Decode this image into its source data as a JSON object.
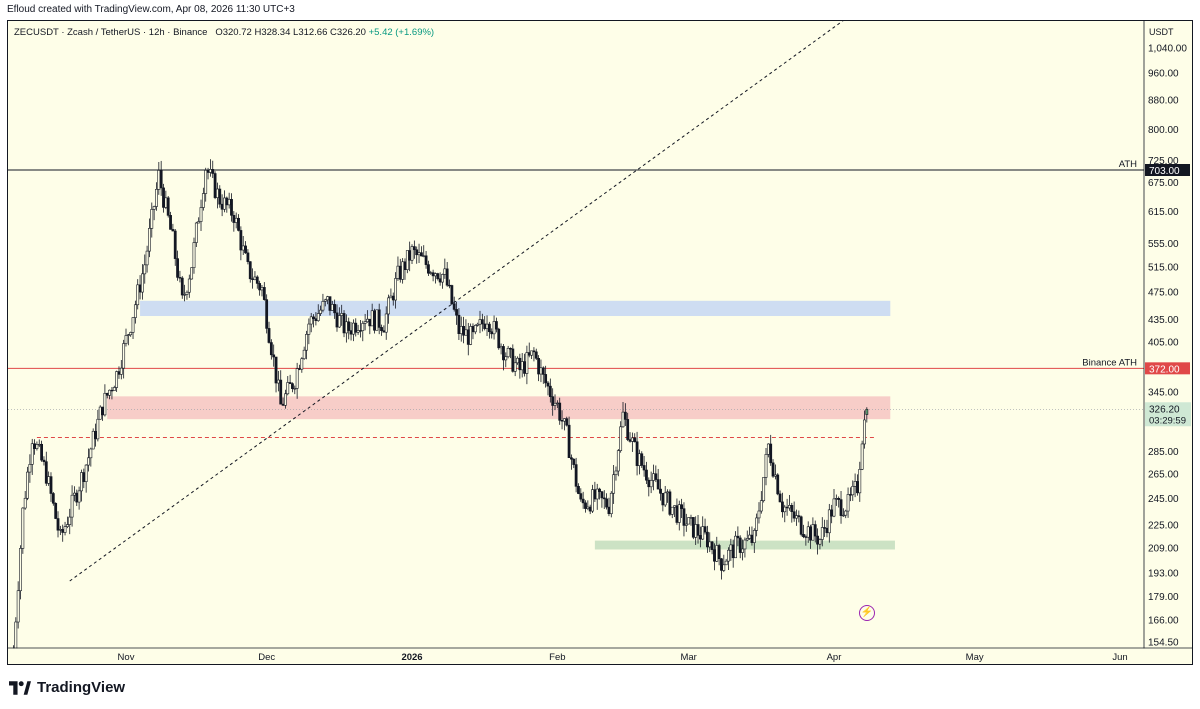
{
  "header": {
    "created_text": "Efloud created with TradingView.com, Apr 08, 2026 11:30 UTC+3"
  },
  "legend": {
    "symbol": "ZECUSDT · Zcash / TetherUS · 12h · Binance",
    "open_label": "O",
    "open": "320.72",
    "high_label": "H",
    "high": "328.34",
    "low_label": "L",
    "low": "312.66",
    "close_label": "C",
    "close": "326.20",
    "change": "+5.42 (+1.69%)"
  },
  "currency": "USDT",
  "brand": {
    "name": "TradingView"
  },
  "colors": {
    "background": "#fefee8",
    "candle": "#131722",
    "blue_zone": "#c9d9f3",
    "red_zone": "#f6c8c4",
    "green_zone": "#c7dfc0",
    "ath_line": "#131722",
    "binance_ath_line": "#e04848",
    "last_price_badge": "#cfe8d4"
  },
  "icons": [
    "tradingview-logo-icon",
    "bolt-icon"
  ],
  "chart_data": {
    "type": "candlestick",
    "scale": "log",
    "timeframe": "12h",
    "x_range": [
      "2025-10-08",
      "2026-06-04"
    ],
    "y_range": [
      150,
      1300
    ],
    "y_ticks": [
      "154.50",
      "166.00",
      "179.00",
      "193.00",
      "209.00",
      "225.00",
      "245.00",
      "265.00",
      "285.00",
      "345.00",
      "405.00",
      "435.00",
      "475.00",
      "515.00",
      "555.00",
      "615.00",
      "675.00",
      "725.00",
      "800.00",
      "880.00",
      "960.00",
      "1,040.00"
    ],
    "x_ticks": [
      {
        "date": "2025-11-01",
        "label": "Nov",
        "bold": false
      },
      {
        "date": "2025-12-01",
        "label": "Dec",
        "bold": false
      },
      {
        "date": "2026-01-01",
        "label": "2026",
        "bold": true
      },
      {
        "date": "2026-02-01",
        "label": "Feb",
        "bold": false
      },
      {
        "date": "2026-03-01",
        "label": "Mar",
        "bold": false
      },
      {
        "date": "2026-04-01",
        "label": "Apr",
        "bold": false
      },
      {
        "date": "2026-05-01",
        "label": "May",
        "bold": false
      },
      {
        "date": "2026-06-01",
        "label": "Jun",
        "bold": false
      }
    ],
    "price_path": [
      [
        "2025-10-08",
        150
      ],
      [
        "2025-10-10",
        235
      ],
      [
        "2025-10-12",
        300
      ],
      [
        "2025-10-15",
        265
      ],
      [
        "2025-10-18",
        215
      ],
      [
        "2025-10-21",
        245
      ],
      [
        "2025-10-24",
        280
      ],
      [
        "2025-10-27",
        330
      ],
      [
        "2025-10-30",
        365
      ],
      [
        "2025-11-02",
        430
      ],
      [
        "2025-11-05",
        520
      ],
      [
        "2025-11-08",
        690
      ],
      [
        "2025-11-11",
        560
      ],
      [
        "2025-11-13",
        460
      ],
      [
        "2025-11-15",
        520
      ],
      [
        "2025-11-18",
        710
      ],
      [
        "2025-11-21",
        640
      ],
      [
        "2025-11-24",
        610
      ],
      [
        "2025-11-27",
        510
      ],
      [
        "2025-11-30",
        480
      ],
      [
        "2025-12-02",
        400
      ],
      [
        "2025-12-04",
        330
      ],
      [
        "2025-12-07",
        360
      ],
      [
        "2025-12-10",
        430
      ],
      [
        "2025-12-14",
        460
      ],
      [
        "2025-12-18",
        420
      ],
      [
        "2025-12-22",
        440
      ],
      [
        "2025-12-26",
        430
      ],
      [
        "2025-12-29",
        500
      ],
      [
        "2026-01-01",
        540
      ],
      [
        "2026-01-04",
        520
      ],
      [
        "2026-01-08",
        500
      ],
      [
        "2026-01-11",
        420
      ],
      [
        "2026-01-14",
        410
      ],
      [
        "2026-01-17",
        440
      ],
      [
        "2026-01-21",
        390
      ],
      [
        "2026-01-24",
        370
      ],
      [
        "2026-01-27",
        390
      ],
      [
        "2026-01-29",
        360
      ],
      [
        "2026-02-01",
        330
      ],
      [
        "2026-02-03",
        300
      ],
      [
        "2026-02-06",
        240
      ],
      [
        "2026-02-09",
        245
      ],
      [
        "2026-02-12",
        240
      ],
      [
        "2026-02-15",
        320
      ],
      [
        "2026-02-18",
        280
      ],
      [
        "2026-02-21",
        260
      ],
      [
        "2026-02-25",
        240
      ],
      [
        "2026-03-01",
        225
      ],
      [
        "2026-03-05",
        215
      ],
      [
        "2026-03-08",
        200
      ],
      [
        "2026-03-11",
        210
      ],
      [
        "2026-03-15",
        215
      ],
      [
        "2026-03-18",
        290
      ],
      [
        "2026-03-21",
        240
      ],
      [
        "2026-03-25",
        225
      ],
      [
        "2026-03-29",
        215
      ],
      [
        "2026-04-01",
        240
      ],
      [
        "2026-04-04",
        240
      ],
      [
        "2026-04-06",
        255
      ],
      [
        "2026-04-07",
        300
      ],
      [
        "2026-04-08",
        326.2
      ]
    ],
    "last_candle": {
      "open": 320.72,
      "high": 328.34,
      "low": 312.66,
      "close": 326.2
    },
    "horizontal_lines": [
      {
        "price": 703.0,
        "label": "ATH",
        "badge": "703.00",
        "color": "#131722"
      },
      {
        "price": 372.0,
        "label": "Binance ATH",
        "badge": "372.00",
        "color": "#e04848"
      }
    ],
    "dashed_levels": [
      {
        "price": 298,
        "color": "#e04848",
        "from": "2025-10-13",
        "to": "2026-04-10"
      }
    ],
    "zones": [
      {
        "name": "blue-zone",
        "from": "2025-11-04",
        "to": "2026-04-13",
        "low": 440,
        "high": 462,
        "color": "#c9d9f3"
      },
      {
        "name": "red-zone",
        "from": "2025-10-28",
        "to": "2026-04-13",
        "low": 316,
        "high": 340,
        "color": "#f6c8c4"
      },
      {
        "name": "green-zone",
        "from": "2026-02-09",
        "to": "2026-04-14",
        "low": 208,
        "high": 214,
        "color": "#c7dfc0"
      }
    ],
    "trend_line": {
      "points": [
        [
          "2025-10-20",
          188
        ],
        [
          "2026-01-06",
          440
        ]
      ],
      "extended": true,
      "style": "dashed"
    },
    "last_price": {
      "badge": "326.20",
      "countdown": "03:29:59"
    }
  }
}
